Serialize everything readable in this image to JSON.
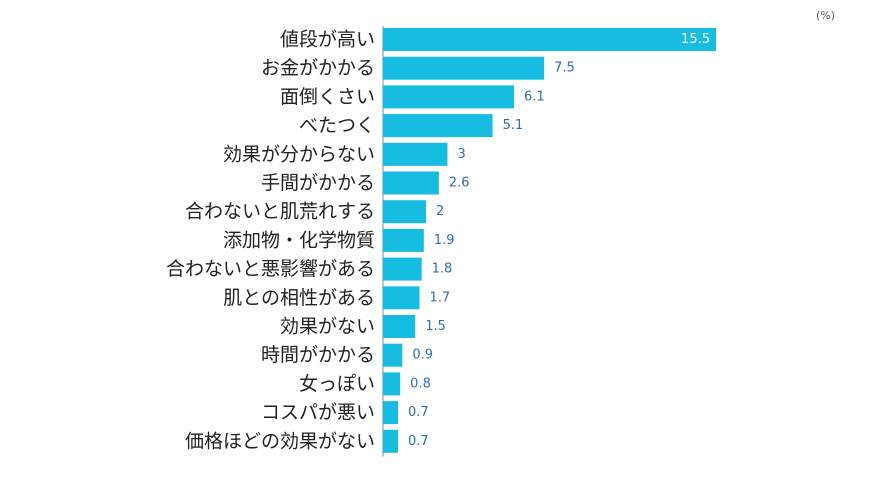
{
  "unit_label": "(%)",
  "colors": {
    "bar": "#16BDE0",
    "value_label": "#2E6FB0",
    "value_label_inside": "#ffffff",
    "category_label": "#222222",
    "axis": "#888888"
  },
  "chart_data": {
    "type": "bar",
    "orientation": "horizontal",
    "categories": [
      "値段が高い",
      "お金がかかる",
      "面倒くさい",
      "べたつく",
      "効果が分からない",
      "手間がかかる",
      "合わないと肌荒れする",
      "添加物・化学物質",
      "合わないと悪影響がある",
      "肌との相性がある",
      "効果がない",
      "時間がかかる",
      "女っぽい",
      "コスパが悪い",
      "価格ほどの効果がない"
    ],
    "values": [
      15.5,
      7.5,
      6.1,
      5.1,
      3,
      2.6,
      2,
      1.9,
      1.8,
      1.7,
      1.5,
      0.9,
      0.8,
      0.7,
      0.7
    ],
    "value_labels": [
      "15.5",
      "7.5",
      "6.1",
      "5.1",
      "3",
      "2.6",
      "2",
      "1.9",
      "1.8",
      "1.7",
      "1.5",
      "0.9",
      "0.8",
      "0.7",
      "0.7"
    ],
    "xlim": [
      0,
      15.5
    ],
    "grid": false,
    "legend": "none"
  }
}
